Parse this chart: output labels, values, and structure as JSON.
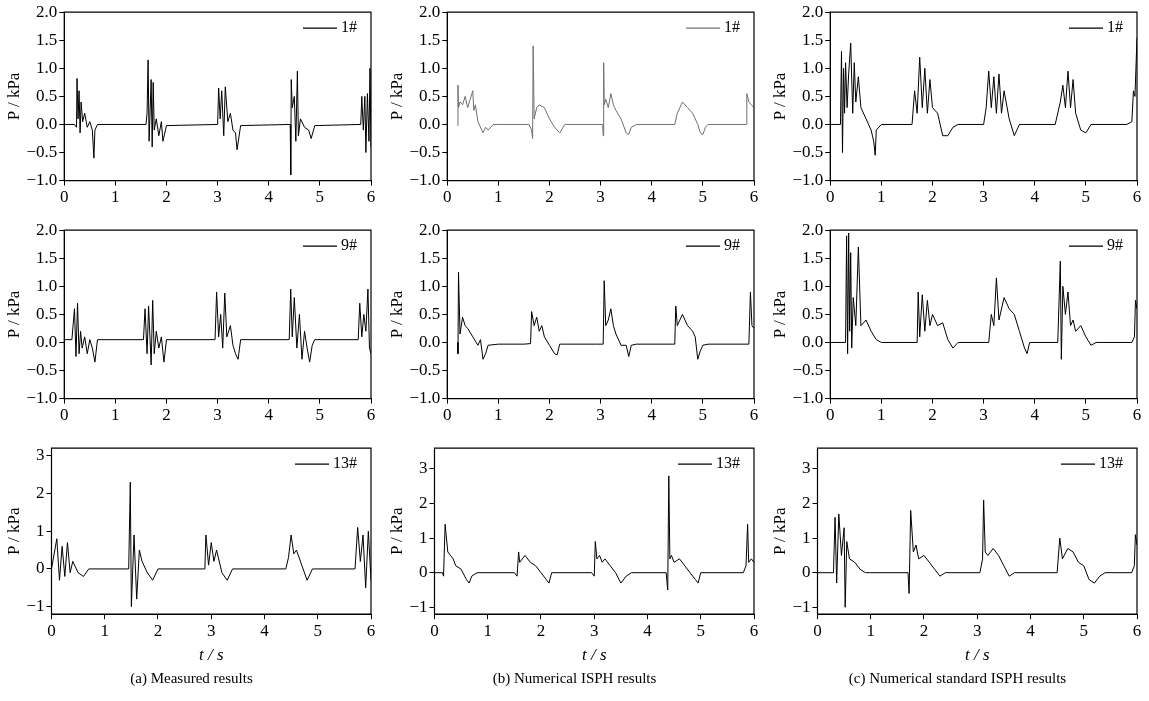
{
  "chart_data": [
    {
      "type": "line",
      "ylabel": "P / kPa",
      "xlim": [
        0,
        6
      ],
      "xticks": [
        0,
        1,
        2,
        3,
        4,
        5,
        6
      ],
      "ylim": [
        -1,
        2
      ],
      "yticks": [
        {
          "value": -1,
          "label": "−1.0"
        },
        {
          "value": -0.5,
          "label": "−0.5"
        },
        {
          "value": 0,
          "label": "0.0"
        },
        {
          "value": 0.5,
          "label": "0.5"
        },
        {
          "value": 1,
          "label": "1.0"
        },
        {
          "value": 1.5,
          "label": "1.5"
        },
        {
          "value": 2,
          "label": "2.0"
        }
      ],
      "grid": false,
      "legend": "top right",
      "marker": "none",
      "series": [
        {
          "name": "1#",
          "color": "#000000",
          "x": [
            0,
            0.2,
            0.24,
            0.25,
            0.27,
            0.29,
            0.31,
            0.33,
            0.36,
            0.4,
            0.45,
            0.5,
            0.55,
            0.58,
            0.6,
            0.65,
            1.6,
            1.62,
            1.64,
            1.66,
            1.7,
            1.72,
            1.74,
            1.76,
            1.8,
            1.85,
            1.9,
            1.93,
            2.0,
            3.0,
            3.02,
            3.05,
            3.08,
            3.12,
            3.15,
            3.2,
            3.25,
            3.3,
            3.35,
            3.38,
            3.45,
            4.42,
            4.43,
            4.44,
            4.46,
            4.5,
            4.53,
            4.56,
            4.58,
            4.62,
            4.7,
            4.78,
            4.83,
            4.9,
            5.8,
            5.82,
            5.85,
            5.88,
            5.9,
            5.93,
            5.96,
            5.98,
            6.0
          ],
          "values": [
            0,
            0,
            -0.05,
            0.82,
            0.1,
            0.6,
            -0.15,
            0.4,
            0.05,
            0.2,
            -0.05,
            0.05,
            -0.1,
            -0.6,
            -0.1,
            0,
            0,
            0.2,
            1.15,
            -0.3,
            0.8,
            -0.4,
            0.75,
            -0.1,
            0.1,
            -0.2,
            0.05,
            -0.3,
            -0.02,
            0,
            0.65,
            0.1,
            0.6,
            -0.2,
            0.67,
            0.05,
            0.2,
            -0.1,
            -0.15,
            -0.45,
            -0.02,
            0,
            -0.9,
            0.8,
            0.3,
            0.5,
            -0.3,
            0.95,
            -0.2,
            0.1,
            -0.05,
            -0.1,
            -0.25,
            -0.02,
            0,
            0.5,
            -0.1,
            0.5,
            -0.5,
            0.55,
            -0.3,
            1.0,
            -0.4
          ]
        }
      ]
    },
    {
      "type": "line",
      "ylabel": "P / kPa",
      "xlim": [
        0,
        6
      ],
      "xticks": [
        0,
        1,
        2,
        3,
        4,
        5,
        6
      ],
      "ylim": [
        -1,
        2
      ],
      "yticks": [
        {
          "value": -1,
          "label": "−1.0"
        },
        {
          "value": -0.5,
          "label": "−0.5"
        },
        {
          "value": 0,
          "label": "0.0"
        },
        {
          "value": 0.5,
          "label": "0.5"
        },
        {
          "value": 1,
          "label": "1.0"
        },
        {
          "value": 1.5,
          "label": "1.5"
        },
        {
          "value": 2,
          "label": "2.0"
        }
      ],
      "grid": false,
      "legend": "top right",
      "marker": "none",
      "series": [
        {
          "name": "1#",
          "color": "#707070",
          "x": [
            0.2,
            0.21,
            0.22,
            0.25,
            0.3,
            0.35,
            0.4,
            0.45,
            0.5,
            0.52,
            0.55,
            0.6,
            0.7,
            0.75,
            0.8,
            0.9,
            1.0,
            1.6,
            1.65,
            1.67,
            1.68,
            1.7,
            1.75,
            1.8,
            1.9,
            2.0,
            2.1,
            2.2,
            2.3,
            2.4,
            3.04,
            3.05,
            3.06,
            3.07,
            3.1,
            3.15,
            3.2,
            3.25,
            3.3,
            3.4,
            3.5,
            3.55,
            3.6,
            3.7,
            4.45,
            4.5,
            4.55,
            4.6,
            4.7,
            4.8,
            4.9,
            4.95,
            5.0,
            5.05,
            5.1,
            5.85,
            5.86,
            5.9,
            5.95,
            6.0
          ],
          "values": [
            -0.02,
            0.7,
            0.3,
            0.4,
            0.35,
            0.5,
            0.3,
            0.45,
            0.6,
            0.25,
            0.35,
            0.05,
            -0.15,
            -0.05,
            -0.1,
            0,
            0,
            0,
            -0.1,
            -0.25,
            1.4,
            0.1,
            0.3,
            0.35,
            0.3,
            0.1,
            -0.05,
            -0.15,
            0,
            0,
            0,
            -0.2,
            1.1,
            0.35,
            0.45,
            0.3,
            0.55,
            0.35,
            0.25,
            0.1,
            -0.15,
            -0.18,
            -0.05,
            0,
            0,
            0.2,
            0.3,
            0.4,
            0.3,
            0.2,
            0,
            -0.15,
            -0.18,
            -0.05,
            0,
            0,
            0.55,
            0.4,
            0.35,
            0.3
          ]
        }
      ]
    },
    {
      "type": "line",
      "ylabel": "P / kPa",
      "xlim": [
        0,
        6
      ],
      "xticks": [
        0,
        1,
        2,
        3,
        4,
        5,
        6
      ],
      "ylim": [
        -1,
        2
      ],
      "yticks": [
        {
          "value": -1,
          "label": "−1.0"
        },
        {
          "value": -0.5,
          "label": "−0.5"
        },
        {
          "value": 0,
          "label": "0.0"
        },
        {
          "value": 0.5,
          "label": "0.5"
        },
        {
          "value": 1,
          "label": "1.0"
        },
        {
          "value": 1.5,
          "label": "1.5"
        },
        {
          "value": 2,
          "label": "2.0"
        }
      ],
      "grid": false,
      "legend": "top right",
      "marker": "none",
      "series": [
        {
          "name": "1#",
          "color": "#000000",
          "x": [
            0,
            0.2,
            0.22,
            0.24,
            0.26,
            0.28,
            0.3,
            0.33,
            0.36,
            0.4,
            0.44,
            0.47,
            0.5,
            0.55,
            0.6,
            0.7,
            0.8,
            0.85,
            0.88,
            0.9,
            1.0,
            1.6,
            1.65,
            1.7,
            1.75,
            1.8,
            1.85,
            1.9,
            1.95,
            2.0,
            2.1,
            2.2,
            2.3,
            2.4,
            2.5,
            3.0,
            3.05,
            3.1,
            3.15,
            3.2,
            3.25,
            3.3,
            3.35,
            3.4,
            3.5,
            3.6,
            3.7,
            4.4,
            4.5,
            4.55,
            4.6,
            4.65,
            4.7,
            4.75,
            4.8,
            4.9,
            5.0,
            5.1,
            5.8,
            5.9,
            5.93,
            5.96,
            6.0
          ],
          "values": [
            0,
            0,
            1.3,
            -0.5,
            1.0,
            0.2,
            1.1,
            0.3,
            0.9,
            1.45,
            0.2,
            1.1,
            0.4,
            0.85,
            0.3,
            0.1,
            -0.1,
            -0.3,
            -0.55,
            -0.1,
            0,
            0,
            0.6,
            0.2,
            1.2,
            0.3,
            1.0,
            0.2,
            0.8,
            0.3,
            0.2,
            -0.2,
            -0.2,
            -0.05,
            0,
            0,
            0.3,
            0.95,
            0.3,
            0.85,
            0.2,
            0.9,
            0.2,
            0.6,
            0.1,
            -0.2,
            0,
            0,
            0.4,
            0.7,
            0.3,
            0.95,
            0.3,
            0.8,
            0.2,
            -0.1,
            -0.15,
            0,
            0,
            0.05,
            0.6,
            0.5,
            1.55
          ]
        }
      ]
    },
    {
      "type": "line",
      "ylabel": "P / kPa",
      "xlim": [
        0,
        6
      ],
      "xticks": [
        0,
        1,
        2,
        3,
        4,
        5,
        6
      ],
      "ylim": [
        -1,
        2
      ],
      "yticks": [
        {
          "value": -1,
          "label": "−1.0"
        },
        {
          "value": -0.5,
          "label": "−0.5"
        },
        {
          "value": 0,
          "label": "0.0"
        },
        {
          "value": 0.5,
          "label": "0.5"
        },
        {
          "value": 1,
          "label": "1.0"
        },
        {
          "value": 1.5,
          "label": "1.5"
        },
        {
          "value": 2,
          "label": "2.0"
        }
      ],
      "grid": false,
      "legend": "top right",
      "marker": "none",
      "series": [
        {
          "name": "9#",
          "color": "#000000",
          "x": [
            0,
            0.15,
            0.2,
            0.23,
            0.26,
            0.29,
            0.32,
            0.35,
            0.4,
            0.45,
            0.5,
            0.55,
            0.6,
            0.65,
            1.55,
            1.58,
            1.62,
            1.65,
            1.7,
            1.73,
            1.76,
            1.8,
            1.85,
            1.9,
            1.95,
            2.0,
            2.95,
            2.98,
            3.02,
            3.06,
            3.1,
            3.14,
            3.18,
            3.25,
            3.3,
            3.35,
            3.4,
            3.45,
            4.4,
            4.43,
            4.46,
            4.5,
            4.55,
            4.6,
            4.65,
            4.7,
            4.75,
            4.8,
            4.85,
            4.9,
            5.75,
            5.78,
            5.82,
            5.86,
            5.9,
            5.94,
            5.97,
            6.0
          ],
          "values": [
            0.05,
            0.05,
            0.6,
            -0.25,
            0.7,
            -0.2,
            0.2,
            -0.1,
            0.1,
            -0.2,
            0.05,
            -0.1,
            -0.35,
            0.05,
            0.05,
            0.6,
            -0.2,
            0.65,
            -0.4,
            0.75,
            -0.2,
            0.2,
            -0.1,
            0.1,
            -0.35,
            0.05,
            0.05,
            0.9,
            0.1,
            0.5,
            -0.1,
            0.88,
            0.1,
            0.3,
            -0.05,
            -0.2,
            -0.3,
            0.05,
            0.05,
            0.95,
            0.1,
            0.8,
            -0.1,
            0.5,
            -0.3,
            0.2,
            -0.1,
            -0.35,
            -0.05,
            0.05,
            0.05,
            0.7,
            0.1,
            0.5,
            0.2,
            0.95,
            -0.1,
            -0.2
          ]
        }
      ]
    },
    {
      "type": "line",
      "ylabel": "P / kPa",
      "xlim": [
        0,
        6
      ],
      "xticks": [
        0,
        1,
        2,
        3,
        4,
        5,
        6
      ],
      "ylim": [
        -1,
        2
      ],
      "yticks": [
        {
          "value": -1,
          "label": "−1.0"
        },
        {
          "value": -0.5,
          "label": "−0.5"
        },
        {
          "value": 0,
          "label": "0.0"
        },
        {
          "value": 0.5,
          "label": "0.5"
        },
        {
          "value": 1,
          "label": "1.0"
        },
        {
          "value": 1.5,
          "label": "1.5"
        },
        {
          "value": 2,
          "label": "2.0"
        }
      ],
      "grid": false,
      "legend": "top right",
      "marker": "none",
      "series": [
        {
          "name": "9#",
          "color": "#000000",
          "x": [
            0.2,
            0.21,
            0.22,
            0.25,
            0.3,
            0.35,
            0.4,
            0.5,
            0.6,
            0.65,
            0.7,
            0.75,
            0.8,
            1.0,
            1.5,
            1.63,
            1.65,
            1.7,
            1.75,
            1.8,
            1.85,
            1.9,
            2.0,
            2.1,
            2.15,
            2.2,
            2.3,
            2.9,
            3.05,
            3.07,
            3.1,
            3.15,
            3.2,
            3.25,
            3.3,
            3.4,
            3.5,
            3.55,
            3.6,
            3.7,
            4.4,
            4.45,
            4.47,
            4.5,
            4.6,
            4.7,
            4.8,
            4.85,
            4.9,
            4.95,
            5.0,
            5.1,
            5.9,
            5.93,
            5.96,
            6.0
          ],
          "values": [
            0,
            -0.2,
            1.25,
            0.15,
            0.45,
            0.3,
            0.25,
            0.1,
            -0.05,
            0.05,
            -0.3,
            -0.2,
            -0.05,
            -0.03,
            -0.03,
            -0.02,
            0.55,
            0.3,
            0.45,
            0.2,
            0.3,
            0.1,
            -0.05,
            -0.2,
            -0.22,
            -0.03,
            -0.03,
            -0.03,
            -0.03,
            1.1,
            0.3,
            0.4,
            0.6,
            0.3,
            0.15,
            -0.05,
            -0.05,
            -0.25,
            -0.05,
            -0.03,
            -0.03,
            -0.03,
            0.65,
            0.3,
            0.5,
            0.3,
            0.2,
            0.1,
            -0.3,
            -0.15,
            -0.05,
            -0.03,
            -0.03,
            0.9,
            0.3,
            0.25
          ]
        }
      ]
    },
    {
      "type": "line",
      "ylabel": "P / kPa",
      "xlim": [
        0,
        6
      ],
      "xticks": [
        0,
        1,
        2,
        3,
        4,
        5,
        6
      ],
      "ylim": [
        -1,
        2
      ],
      "yticks": [
        {
          "value": -1,
          "label": "−1.0"
        },
        {
          "value": -0.5,
          "label": "−0.5"
        },
        {
          "value": 0,
          "label": "0.0"
        },
        {
          "value": 0.5,
          "label": "0.5"
        },
        {
          "value": 1,
          "label": "1.0"
        },
        {
          "value": 1.5,
          "label": "1.5"
        },
        {
          "value": 2,
          "label": "2.0"
        }
      ],
      "grid": false,
      "legend": "top right",
      "marker": "none",
      "series": [
        {
          "name": "9#",
          "color": "#000000",
          "x": [
            0,
            0.3,
            0.32,
            0.34,
            0.36,
            0.38,
            0.4,
            0.42,
            0.45,
            0.5,
            0.55,
            0.6,
            0.7,
            0.8,
            0.9,
            1.0,
            1.7,
            1.72,
            1.75,
            1.8,
            1.85,
            1.9,
            1.95,
            2.0,
            2.1,
            2.2,
            2.3,
            2.4,
            2.5,
            3.1,
            3.15,
            3.2,
            3.25,
            3.3,
            3.4,
            3.5,
            3.6,
            3.7,
            3.8,
            3.85,
            3.9,
            4.45,
            4.5,
            4.52,
            4.55,
            4.6,
            4.65,
            4.7,
            4.75,
            4.8,
            4.9,
            5.0,
            5.1,
            5.2,
            5.9,
            5.95,
            5.97,
            6.0
          ],
          "values": [
            0,
            0,
            1.9,
            -0.2,
            1.95,
            0.2,
            1.6,
            -0.1,
            0.8,
            0.3,
            1.7,
            0.3,
            0.4,
            0.2,
            0.05,
            0,
            0,
            0.9,
            0.1,
            0.85,
            0.2,
            0.75,
            0.3,
            0.5,
            0.3,
            0.35,
            0.05,
            -0.1,
            0,
            0,
            0.5,
            0.3,
            1.15,
            0.4,
            0.8,
            0.6,
            0.5,
            0.2,
            -0.1,
            -0.2,
            0,
            0,
            1.45,
            -0.3,
            1.0,
            0.5,
            0.9,
            0.3,
            0.4,
            0.2,
            0.3,
            0.1,
            -0.05,
            0,
            0,
            0.1,
            0.75,
            0.6
          ]
        }
      ]
    },
    {
      "type": "line",
      "xlabel": "t / s",
      "ylabel": "P / kPa",
      "xlim": [
        0,
        6
      ],
      "xticks": [
        0,
        1,
        2,
        3,
        4,
        5,
        6
      ],
      "ylim": [
        -1.2,
        3.2
      ],
      "yticks": [
        {
          "value": -1,
          "label": "−1"
        },
        0,
        1,
        2,
        3
      ],
      "grid": false,
      "legend": "top right",
      "marker": "none",
      "annotations": [
        "(a) Measured results"
      ],
      "series": [
        {
          "name": "13#",
          "color": "#000000",
          "x": [
            0,
            0.1,
            0.15,
            0.2,
            0.25,
            0.3,
            0.35,
            0.4,
            0.5,
            0.6,
            0.7,
            1.45,
            1.48,
            1.5,
            1.55,
            1.6,
            1.65,
            1.7,
            1.8,
            1.9,
            2.0,
            2.88,
            2.9,
            2.95,
            3.0,
            3.05,
            3.1,
            3.2,
            3.3,
            3.4,
            4.4,
            4.45,
            4.5,
            4.55,
            4.6,
            4.7,
            4.8,
            4.9,
            5.7,
            5.75,
            5.8,
            5.85,
            5.9,
            5.95,
            6.0
          ],
          "values": [
            0,
            0.8,
            -0.3,
            0.6,
            -0.2,
            0.7,
            -0.1,
            0.2,
            -0.1,
            -0.2,
            0,
            0,
            2.3,
            -1,
            0.9,
            -0.8,
            0.5,
            0.2,
            -0.1,
            -0.3,
            0,
            0,
            0.9,
            0.1,
            0.7,
            0.2,
            0.5,
            -0.1,
            -0.3,
            0,
            0,
            0.3,
            0.9,
            0.4,
            0.5,
            0.1,
            -0.3,
            0,
            0,
            1.1,
            0.2,
            0.9,
            -0.5,
            1.0,
            -0.3
          ]
        }
      ]
    },
    {
      "type": "line",
      "xlabel": "t / s",
      "ylabel": "P / kPa",
      "xlim": [
        0,
        6
      ],
      "xticks": [
        0,
        1,
        2,
        3,
        4,
        5,
        6
      ],
      "ylim": [
        -1.2,
        3.6
      ],
      "yticks": [
        {
          "value": -1,
          "label": "−1"
        },
        0,
        1,
        2,
        3
      ],
      "grid": false,
      "legend": "top right",
      "marker": "none",
      "annotations": [
        "(b) Numerical ISPH results"
      ],
      "series": [
        {
          "name": "13#",
          "color": "#000000",
          "x": [
            0,
            0.15,
            0.17,
            0.2,
            0.25,
            0.3,
            0.35,
            0.4,
            0.5,
            0.6,
            0.65,
            0.7,
            0.8,
            1.5,
            1.55,
            1.58,
            1.6,
            1.7,
            1.8,
            1.9,
            2.0,
            2.1,
            2.15,
            2.2,
            2.95,
            3.0,
            3.02,
            3.05,
            3.1,
            3.15,
            3.2,
            3.3,
            3.4,
            3.5,
            3.6,
            3.7,
            4.35,
            4.38,
            4.4,
            4.42,
            4.45,
            4.5,
            4.6,
            4.7,
            4.8,
            4.9,
            4.95,
            5.0,
            5.8,
            5.85,
            5.88,
            5.9,
            5.95,
            6.0
          ],
          "values": [
            0,
            0,
            -0.1,
            1.4,
            0.6,
            0.5,
            0.4,
            0.2,
            0.1,
            -0.2,
            -0.3,
            -0.1,
            0,
            0,
            -0.1,
            0.6,
            0.3,
            0.5,
            0.3,
            0.2,
            0,
            -0.2,
            -0.3,
            0,
            0,
            -0.1,
            0.9,
            0.4,
            0.5,
            0.3,
            0.4,
            0.2,
            0,
            -0.3,
            -0.1,
            0,
            0,
            -0.5,
            2.8,
            0.4,
            0.5,
            0.3,
            0.4,
            0.2,
            0,
            -0.2,
            -0.3,
            0,
            0,
            0.2,
            1.4,
            0.3,
            0.4,
            0.3
          ]
        }
      ]
    },
    {
      "type": "line",
      "xlabel": "t / s",
      "ylabel": "P / kPa",
      "xlim": [
        0,
        6
      ],
      "xticks": [
        0,
        1,
        2,
        3,
        4,
        5,
        6
      ],
      "ylim": [
        -1.2,
        3.6
      ],
      "yticks": [
        {
          "value": -1,
          "label": "−1"
        },
        0,
        1,
        2,
        3
      ],
      "grid": false,
      "legend": "top right",
      "marker": "none",
      "annotations": [
        "(c) Numerical standard ISPH results"
      ],
      "series": [
        {
          "name": "13#",
          "color": "#000000",
          "x": [
            0,
            0.3,
            0.33,
            0.36,
            0.4,
            0.45,
            0.5,
            0.52,
            0.55,
            0.6,
            0.7,
            0.8,
            0.9,
            1.0,
            1.7,
            1.72,
            1.75,
            1.8,
            1.85,
            1.9,
            2.0,
            2.1,
            2.2,
            2.3,
            2.4,
            3.05,
            3.1,
            3.12,
            3.15,
            3.2,
            3.3,
            3.4,
            3.5,
            3.6,
            3.7,
            4.5,
            4.55,
            4.6,
            4.7,
            4.8,
            4.9,
            5.0,
            5.1,
            5.2,
            5.3,
            5.4,
            5.9,
            5.95,
            5.97,
            6.0
          ],
          "values": [
            0,
            0,
            1.6,
            -0.3,
            1.7,
            0.5,
            1.3,
            -1.0,
            0.9,
            0.4,
            0.3,
            0.1,
            0,
            0,
            0,
            -0.6,
            1.8,
            0.6,
            0.8,
            0.4,
            0.5,
            0.3,
            0.1,
            -0.1,
            0,
            0,
            0.4,
            2.1,
            0.6,
            0.5,
            0.7,
            0.5,
            0.2,
            -0.1,
            0,
            0,
            1.0,
            0.4,
            0.7,
            0.6,
            0.3,
            0.2,
            -0.2,
            -0.3,
            -0.1,
            0,
            0,
            0.2,
            1.1,
            0.8
          ]
        }
      ]
    }
  ]
}
